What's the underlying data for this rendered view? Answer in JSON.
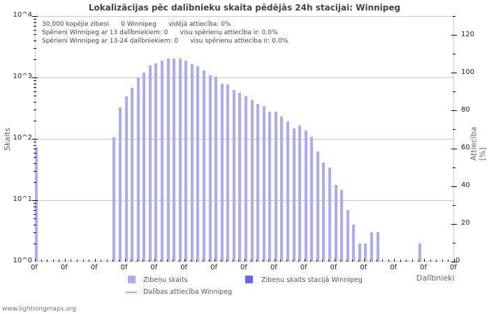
{
  "title": "Lokalizācijas pēc dalībnieku skaita pēdējās 24h stacijai: Winnipeg",
  "info": {
    "line1": "30,000 kopējie zibeņi      0 Winnipeg      vidējā attiecība: 0%",
    "line2": "Spērieni Winnipeg ar 13 dalībniekiem: 0      visu spērienu attiecība ir: 0.0%",
    "line3": "Spērieni Winnipeg ar 13-24 dalībniekiem: 0      visu spērienu attiecība ir: 0.0%"
  },
  "axes": {
    "ylabel": "Skaits",
    "y2label": "Attiecība [%]",
    "xlabel": "Dalībnieki",
    "left_ticks": [
      "10^4",
      "10^3",
      "10^2",
      "10^1",
      "10^0"
    ],
    "right_ticks": [
      "120",
      "100",
      "80",
      "60",
      "40",
      "20",
      "0"
    ],
    "x_tick_label": "0f"
  },
  "legend": {
    "item1": "Zibeņu skaits",
    "item2": "Zibeņu skaits stacijā Winnipeg",
    "item3": "Dalības attiecība Winnipeg"
  },
  "colors": {
    "bar": "#aaaaff",
    "station_bar": "#6666ff",
    "ratio_line": "#ee88ee"
  },
  "footer": "www.lightningmaps.org",
  "chart_data": {
    "type": "bar",
    "title": "Lokalizācijas pēc dalībnieku skaita pēdējās 24h stacijai: Winnipeg",
    "xlabel": "Dalībnieki",
    "ylabel": "Skaits",
    "y2label": "Attiecība [%]",
    "yscale": "log",
    "ylim": [
      1,
      10000
    ],
    "y2lim": [
      0,
      130
    ],
    "grid": true,
    "legend_position": "bottom",
    "x_tick_labels": [
      "0f",
      "0f",
      "0f",
      "0f",
      "0f",
      "0f",
      "0f",
      "0f",
      "0f",
      "0f",
      "0f",
      "0f",
      "0f",
      "0f",
      "0f"
    ],
    "series": [
      {
        "name": "Zibeņu skaits",
        "values": [
          73,
          0,
          0,
          0,
          0,
          0,
          0,
          0,
          0,
          0,
          0,
          0,
          0,
          105,
          325,
          490,
          675,
          1000,
          1200,
          1550,
          1700,
          1880,
          2030,
          2030,
          2030,
          1880,
          1650,
          1520,
          1300,
          1080,
          1030,
          790,
          770,
          625,
          560,
          490,
          435,
          370,
          340,
          277,
          277,
          230,
          192,
          148,
          165,
          137,
          108,
          63,
          41,
          34,
          18,
          15,
          7,
          4,
          2,
          2,
          3,
          3,
          0,
          1,
          0,
          1,
          1,
          0,
          2,
          1,
          0,
          0,
          0,
          0
        ]
      },
      {
        "name": "Zibeņu skaits stacijā Winnipeg",
        "values": []
      },
      {
        "name": "Dalības attiecība Winnipeg",
        "values": []
      }
    ]
  }
}
